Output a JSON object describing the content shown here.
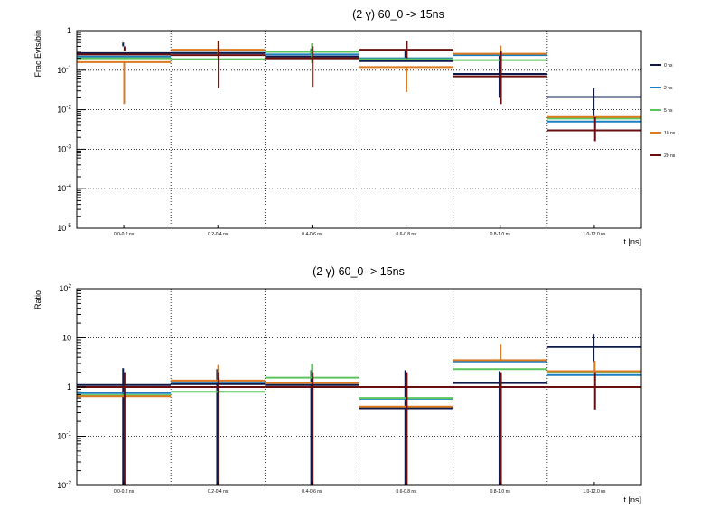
{
  "chart_data": [
    {
      "type": "step",
      "title": "(2 γ) 60_0 -> 15ns",
      "xlabel": "t [ns]",
      "ylabel": "Frac Evts/bin",
      "yscale": "log",
      "ylim": [
        1e-05,
        1
      ],
      "yticks": [
        {
          "value": 1,
          "base": "1",
          "exp": ""
        },
        {
          "value": 0.1,
          "base": "10",
          "exp": "-1"
        },
        {
          "value": 0.01,
          "base": "10",
          "exp": "-2"
        },
        {
          "value": 0.001,
          "base": "10",
          "exp": "-3"
        },
        {
          "value": 0.0001,
          "base": "10",
          "exp": "-4"
        },
        {
          "value": 1e-05,
          "base": "10",
          "exp": "-5"
        }
      ],
      "categories": [
        "0.0-0.2 ns",
        "0.2-0.4 ns",
        "0.4-0.6 ns",
        "0.6-0.8 ns",
        "0.8-1.0 ns",
        "1.0-12.0 ns"
      ],
      "grid": true,
      "legend": "right",
      "series": [
        {
          "name": "0 ns",
          "color": "#0d1a4a",
          "values": [
            0.27,
            0.27,
            0.22,
            0.17,
            0.08,
            0.021
          ],
          "err_lo": [
            0.4,
            0.3,
            0.25,
            0.2,
            0.02,
            0.006
          ],
          "err_hi": [
            0.5,
            0.35,
            0.35,
            0.3,
            0.25,
            0.035
          ]
        },
        {
          "name": "2 ns",
          "color": "#1c7fc0",
          "values": [
            0.22,
            0.31,
            0.25,
            0.2,
            0.24,
            0.005
          ],
          "err_lo": [
            0.22,
            0.31,
            0.25,
            0.2,
            0.24,
            0.005
          ],
          "err_hi": [
            0.22,
            0.31,
            0.25,
            0.2,
            0.24,
            0.005
          ]
        },
        {
          "name": "5 ns",
          "color": "#5cc45c",
          "values": [
            0.2,
            0.19,
            0.29,
            0.19,
            0.18,
            0.006
          ],
          "err_lo": [
            0.2,
            0.19,
            0.15,
            0.19,
            0.18,
            0.006
          ],
          "err_hi": [
            0.2,
            0.19,
            0.48,
            0.19,
            0.18,
            0.006
          ]
        },
        {
          "name": "10 ns",
          "color": "#dc7a22",
          "values": [
            0.16,
            0.33,
            0.2,
            0.12,
            0.26,
            0.0065
          ],
          "err_lo": [
            0.014,
            0.2,
            0.2,
            0.028,
            0.12,
            0.0065
          ],
          "err_hi": [
            0.16,
            0.55,
            0.2,
            0.12,
            0.42,
            0.0065
          ]
        },
        {
          "name": "20 ns",
          "color": "#6a0f0f",
          "values": [
            0.25,
            0.24,
            0.2,
            0.33,
            0.07,
            0.003
          ],
          "err_lo": [
            0.3,
            0.035,
            0.038,
            0.2,
            0.014,
            0.0016
          ],
          "err_hi": [
            0.4,
            0.55,
            0.4,
            0.55,
            0.3,
            0.0065
          ]
        }
      ]
    },
    {
      "type": "step",
      "title": "(2 γ) 60_0 -> 15ns",
      "xlabel": "t [ns]",
      "ylabel": "Ratio",
      "yscale": "log",
      "ylim": [
        0.01,
        100
      ],
      "yticks": [
        {
          "value": 100,
          "base": "10",
          "exp": "2"
        },
        {
          "value": 10,
          "base": "10",
          "exp": ""
        },
        {
          "value": 1,
          "base": "1",
          "exp": ""
        },
        {
          "value": 0.1,
          "base": "10",
          "exp": "-1"
        },
        {
          "value": 0.01,
          "base": "10",
          "exp": "-2"
        }
      ],
      "categories": [
        "0.0-0.2 ns",
        "0.2-0.4 ns",
        "0.4-0.6 ns",
        "0.6-0.8 ns",
        "0.8-1.0 ns",
        "1.0-12.0 ns"
      ],
      "grid": true,
      "series": [
        {
          "name": "0 ns",
          "color": "#0d1a4a",
          "values": [
            1.1,
            1.15,
            1.1,
            0.37,
            1.2,
            6.5
          ],
          "err_lo": [
            0.01,
            0.01,
            0.01,
            0.01,
            0.01,
            3.2
          ],
          "err_hi": [
            2.4,
            2.3,
            2.2,
            2.2,
            2.1,
            12
          ]
        },
        {
          "name": "2 ns",
          "color": "#1c7fc0",
          "values": [
            0.75,
            1.25,
            1.2,
            0.58,
            3.3,
            1.75
          ],
          "err_lo": [
            0.75,
            1.25,
            1.2,
            0.58,
            3.3,
            1.75
          ],
          "err_hi": [
            0.75,
            1.25,
            1.2,
            0.58,
            3.3,
            1.75
          ]
        },
        {
          "name": "5 ns",
          "color": "#5cc45c",
          "values": [
            0.68,
            0.8,
            1.55,
            0.6,
            2.3,
            2.0
          ],
          "err_lo": [
            0.68,
            0.8,
            1.55,
            0.6,
            2.3,
            2.0
          ],
          "err_hi": [
            0.68,
            0.8,
            3.0,
            0.6,
            2.3,
            2.0
          ]
        },
        {
          "name": "10 ns",
          "color": "#dc7a22",
          "values": [
            0.65,
            1.35,
            1.2,
            0.4,
            3.5,
            2.1
          ],
          "err_lo": [
            0.65,
            1.35,
            1.2,
            0.4,
            3.5,
            2.1
          ],
          "err_hi": [
            0.65,
            2.8,
            1.2,
            0.4,
            7.5,
            3.4
          ]
        },
        {
          "name": "20 ns",
          "color": "#6a0f0f",
          "values": [
            1.0,
            1.0,
            1.0,
            1.0,
            1.0,
            1.0
          ],
          "err_lo": [
            0.01,
            0.01,
            0.01,
            0.01,
            0.01,
            0.35
          ],
          "err_hi": [
            2.0,
            2.0,
            2.0,
            2.0,
            2.0,
            2.0
          ]
        }
      ]
    }
  ]
}
